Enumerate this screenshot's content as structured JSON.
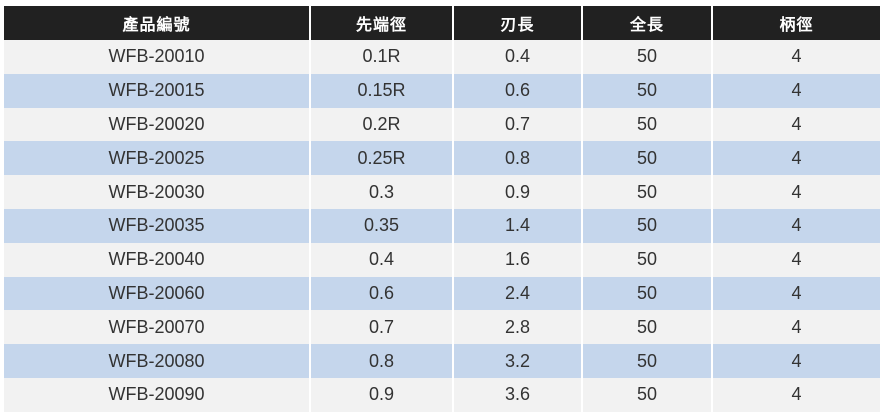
{
  "table": {
    "headers": [
      "產品編號",
      "先端徑",
      "刃長",
      "全長",
      "柄徑"
    ],
    "rows": [
      [
        "WFB-20010",
        "0.1R",
        "0.4",
        "50",
        "4"
      ],
      [
        "WFB-20015",
        "0.15R",
        "0.6",
        "50",
        "4"
      ],
      [
        "WFB-20020",
        "0.2R",
        "0.7",
        "50",
        "4"
      ],
      [
        "WFB-20025",
        "0.25R",
        "0.8",
        "50",
        "4"
      ],
      [
        "WFB-20030",
        "0.3",
        "0.9",
        "50",
        "4"
      ],
      [
        "WFB-20035",
        "0.35",
        "1.4",
        "50",
        "4"
      ],
      [
        "WFB-20040",
        "0.4",
        "1.6",
        "50",
        "4"
      ],
      [
        "WFB-20060",
        "0.6",
        "2.4",
        "50",
        "4"
      ],
      [
        "WFB-20070",
        "0.7",
        "2.8",
        "50",
        "4"
      ],
      [
        "WFB-20080",
        "0.8",
        "3.2",
        "50",
        "4"
      ],
      [
        "WFB-20090",
        "0.9",
        "3.6",
        "50",
        "4"
      ]
    ]
  },
  "colors": {
    "header_bg": "#212121",
    "header_text": "#ffffff",
    "row_odd_bg": "#f2f2f2",
    "row_even_bg": "#c5d6ec",
    "cell_text": "#333333"
  }
}
